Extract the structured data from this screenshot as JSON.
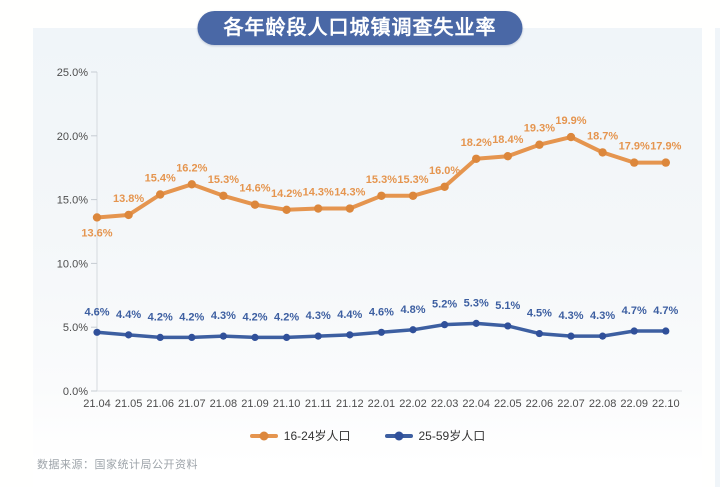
{
  "page": {
    "title": "各年龄段人口城镇调查失业率",
    "source_note": "数据来源：国家统计局公开资料"
  },
  "colors": {
    "title_pill_bg": "#4a68a6",
    "title_text": "#ffffff",
    "axis_line": "#d5dade",
    "axis_text": "#4d4d4d",
    "source_text": "#9ea4aa",
    "legend_text": "#333333"
  },
  "chart_data": {
    "type": "line",
    "title": "各年龄段人口城镇调查失业率",
    "categories": [
      "21.04",
      "21.05",
      "21.06",
      "21.07",
      "21.08",
      "21.09",
      "21.10",
      "21.11",
      "21.12",
      "22.01",
      "22.02",
      "22.03",
      "22.04",
      "22.05",
      "22.06",
      "22.07",
      "22.08",
      "22.09",
      "22.10"
    ],
    "series": [
      {
        "name": "16-24岁人口",
        "color": "#e5954f",
        "dot_color": "#dc873c",
        "values": [
          13.6,
          13.8,
          15.4,
          16.2,
          15.3,
          14.6,
          14.2,
          14.3,
          14.3,
          15.3,
          15.3,
          16.0,
          18.2,
          18.4,
          19.3,
          19.9,
          18.7,
          17.9,
          17.9
        ]
      },
      {
        "name": "25-59岁人口",
        "color": "#3d5fa1",
        "dot_color": "#30509a",
        "values": [
          4.6,
          4.4,
          4.2,
          4.2,
          4.3,
          4.2,
          4.2,
          4.3,
          4.4,
          4.6,
          4.8,
          5.2,
          5.3,
          5.1,
          4.5,
          4.3,
          4.3,
          4.7,
          4.7
        ]
      }
    ],
    "label_format": "one_decimal_percent",
    "xlabel": "",
    "ylabel": "",
    "ylim": [
      0,
      25
    ],
    "ytick_values": [
      0,
      5,
      10,
      15,
      20,
      25
    ],
    "ytick_labels": [
      "0.0%",
      "5.0%",
      "10.0%",
      "15.0%",
      "20.0%",
      "25.0%"
    ],
    "grid": false,
    "legend_position": "bottom"
  }
}
